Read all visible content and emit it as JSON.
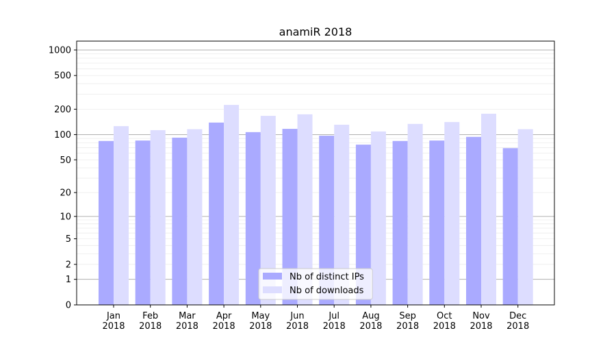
{
  "chart_data": {
    "type": "bar",
    "title": "anamiR 2018",
    "xlabel": "",
    "ylabel": "",
    "yscale": "symlog (log10(v+1))",
    "ylim": [
      0,
      1200
    ],
    "yticks": [
      0,
      1,
      2,
      5,
      10,
      20,
      50,
      100,
      200,
      500,
      1000
    ],
    "grid": true,
    "legend_position": "bottom-center",
    "categories": [
      "Jan\n2018",
      "Feb\n2018",
      "Mar\n2018",
      "Apr\n2018",
      "May\n2018",
      "Jun\n2018",
      "Jul\n2018",
      "Aug\n2018",
      "Sep\n2018",
      "Oct\n2018",
      "Nov\n2018",
      "Dec\n2018"
    ],
    "series": [
      {
        "name": "Nb of distinct IPs",
        "color": "#aaaaff",
        "values": [
          84,
          85,
          92,
          139,
          107,
          117,
          97,
          76,
          84,
          85,
          94,
          69
        ]
      },
      {
        "name": "Nb of downloads",
        "color": "#ddddff",
        "values": [
          126,
          113,
          116,
          225,
          167,
          174,
          131,
          109,
          134,
          141,
          177,
          116
        ]
      }
    ]
  }
}
